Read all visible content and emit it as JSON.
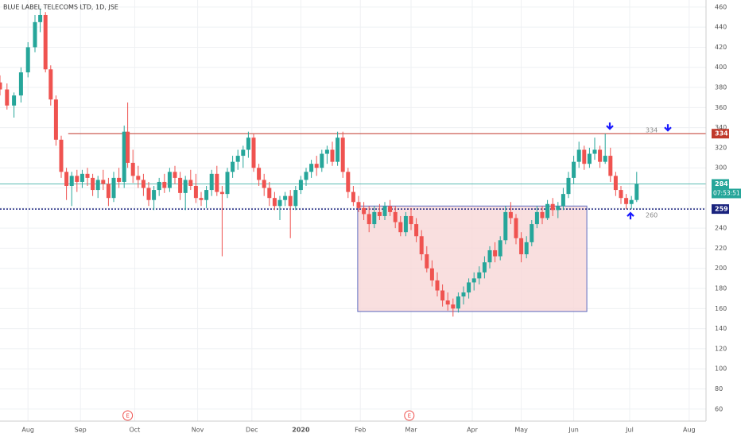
{
  "chart_data": {
    "type": "candlestick",
    "title": "BLUE LABEL TELECOMS LTD, 1D, JSE",
    "x": [
      0,
      4,
      8,
      12,
      16,
      20,
      23,
      26,
      29,
      32,
      35,
      38,
      41,
      44,
      47,
      50,
      53,
      56,
      59,
      62,
      65,
      68,
      71,
      73,
      76,
      79,
      82,
      85,
      88,
      91,
      94,
      97,
      100,
      103,
      106,
      109,
      112,
      115,
      118,
      121,
      124,
      127,
      130,
      133,
      136,
      139,
      142,
      145,
      148,
      151,
      154,
      157,
      160,
      163,
      166,
      169,
      172,
      175,
      178,
      181,
      184,
      187,
      190,
      193,
      196,
      199,
      202,
      205,
      208,
      211,
      214,
      217,
      220,
      223,
      226,
      229,
      232,
      235,
      238,
      241,
      244,
      247,
      250,
      253,
      256,
      259,
      262,
      265,
      268,
      271,
      274,
      277,
      280,
      283,
      286,
      289,
      292,
      295,
      298,
      301,
      304,
      307,
      310,
      313,
      316,
      319,
      322,
      325,
      328,
      331,
      334,
      337,
      340,
      343,
      346,
      349,
      352,
      355,
      358,
      361,
      364
    ],
    "open": [
      385,
      378,
      362,
      372,
      395,
      420,
      445,
      452,
      398,
      368,
      328,
      296,
      282,
      292,
      286,
      294,
      290,
      278,
      288,
      284,
      270,
      290,
      286,
      336,
      305,
      292,
      288,
      280,
      268,
      278,
      286,
      280,
      296,
      290,
      275,
      288,
      282,
      270,
      268,
      278,
      294,
      276,
      274,
      296,
      306,
      312,
      318,
      330,
      300,
      288,
      280,
      270,
      262,
      268,
      272,
      262,
      278,
      288,
      296,
      304,
      300,
      314,
      318,
      306,
      330,
      296,
      276,
      266,
      260,
      254,
      244,
      256,
      252,
      262,
      256,
      246,
      236,
      252,
      244,
      232,
      214,
      200,
      188,
      178,
      168,
      164,
      160,
      172,
      176,
      186,
      190,
      196,
      206,
      218,
      212,
      228,
      256,
      250,
      230,
      214,
      226,
      244,
      256,
      250,
      264,
      258,
      262,
      274,
      290,
      306,
      318,
      304,
      314,
      318,
      306,
      312,
      292,
      278,
      270,
      264,
      268
    ],
    "high": [
      392,
      384,
      375,
      400,
      425,
      452,
      458,
      455,
      402,
      372,
      332,
      300,
      296,
      298,
      298,
      300,
      294,
      292,
      298,
      290,
      296,
      300,
      342,
      365,
      318,
      302,
      294,
      286,
      282,
      290,
      294,
      300,
      302,
      296,
      292,
      298,
      294,
      276,
      282,
      298,
      302,
      282,
      300,
      312,
      318,
      322,
      336,
      334,
      304,
      294,
      286,
      276,
      272,
      276,
      278,
      282,
      292,
      300,
      308,
      312,
      318,
      322,
      326,
      336,
      336,
      300,
      282,
      272,
      266,
      262,
      262,
      264,
      266,
      268,
      262,
      252,
      256,
      260,
      250,
      238,
      222,
      208,
      196,
      184,
      176,
      170,
      176,
      182,
      190,
      196,
      202,
      212,
      222,
      226,
      232,
      262,
      266,
      254,
      236,
      232,
      248,
      262,
      262,
      268,
      270,
      266,
      280,
      296,
      312,
      326,
      322,
      320,
      330,
      322,
      334,
      320,
      296,
      282,
      274,
      272,
      296
    ],
    "low": [
      372,
      358,
      350,
      365,
      390,
      415,
      435,
      395,
      362,
      322,
      290,
      268,
      262,
      276,
      280,
      282,
      272,
      270,
      278,
      262,
      266,
      280,
      280,
      300,
      285,
      280,
      272,
      262,
      258,
      272,
      275,
      276,
      284,
      268,
      258,
      278,
      265,
      262,
      260,
      272,
      272,
      212,
      270,
      290,
      298,
      300,
      310,
      296,
      282,
      272,
      262,
      258,
      248,
      262,
      230,
      258,
      274,
      282,
      290,
      292,
      296,
      304,
      302,
      302,
      290,
      270,
      262,
      256,
      248,
      236,
      240,
      248,
      248,
      252,
      240,
      232,
      232,
      238,
      226,
      208,
      196,
      182,
      172,
      162,
      158,
      152,
      156,
      164,
      170,
      178,
      184,
      190,
      200,
      206,
      208,
      224,
      244,
      224,
      206,
      210,
      222,
      240,
      244,
      248,
      252,
      250,
      258,
      270,
      284,
      300,
      298,
      300,
      308,
      300,
      304,
      286,
      272,
      264,
      259,
      259,
      266
    ],
    "close": [
      378,
      362,
      372,
      395,
      420,
      445,
      452,
      398,
      368,
      328,
      296,
      282,
      292,
      286,
      294,
      290,
      278,
      288,
      284,
      270,
      290,
      286,
      336,
      305,
      292,
      288,
      280,
      268,
      278,
      286,
      280,
      296,
      290,
      275,
      288,
      282,
      270,
      268,
      278,
      294,
      276,
      274,
      296,
      306,
      312,
      318,
      330,
      300,
      288,
      280,
      270,
      262,
      268,
      272,
      262,
      278,
      288,
      296,
      304,
      300,
      314,
      318,
      306,
      330,
      296,
      276,
      266,
      260,
      254,
      244,
      256,
      252,
      262,
      256,
      246,
      236,
      252,
      244,
      232,
      214,
      200,
      188,
      178,
      168,
      164,
      160,
      172,
      176,
      186,
      190,
      196,
      206,
      218,
      212,
      228,
      256,
      250,
      230,
      214,
      226,
      244,
      256,
      250,
      264,
      258,
      262,
      274,
      290,
      306,
      318,
      304,
      314,
      318,
      306,
      312,
      292,
      278,
      270,
      264,
      268,
      284
    ],
    "up_color": "#26a69a",
    "down_color": "#ef5350",
    "xlim": [
      0,
      404
    ],
    "ylim": [
      48,
      467
    ],
    "xticks": [
      {
        "value": 16,
        "label": "Aug"
      },
      {
        "value": 46,
        "label": "Sep"
      },
      {
        "value": 77,
        "label": "Oct"
      },
      {
        "value": 113,
        "label": "Nov"
      },
      {
        "value": 144,
        "label": "Dec"
      },
      {
        "value": 172,
        "label": "2020"
      },
      {
        "value": 206,
        "label": "Feb"
      },
      {
        "value": 235,
        "label": "Mar"
      },
      {
        "value": 270,
        "label": "Apr"
      },
      {
        "value": 298,
        "label": "May"
      },
      {
        "value": 328,
        "label": "Jun"
      },
      {
        "value": 360,
        "label": "Jul"
      },
      {
        "value": 394,
        "label": "Aug"
      }
    ],
    "yticks": [
      60,
      80,
      100,
      120,
      140,
      160,
      180,
      200,
      220,
      240,
      260,
      280,
      300,
      320,
      340,
      360,
      380,
      400,
      420,
      440,
      460
    ],
    "grid": true,
    "resistance": 334,
    "resistance_start": 39,
    "resistance_color": "#c0392b",
    "support": 259,
    "support_color": "#1a237e",
    "last_price": 284,
    "last_color": "#26a69a",
    "countdown": "07:53:51",
    "support_note": 260,
    "box": {
      "x": [
        204.5,
        335.5
      ],
      "y": [
        157,
        262
      ],
      "fill": "#f8d7d7",
      "stroke": "#5c6bc0"
    },
    "events": [
      "E",
      "E"
    ],
    "event_x": [
      73,
      234
    ]
  }
}
